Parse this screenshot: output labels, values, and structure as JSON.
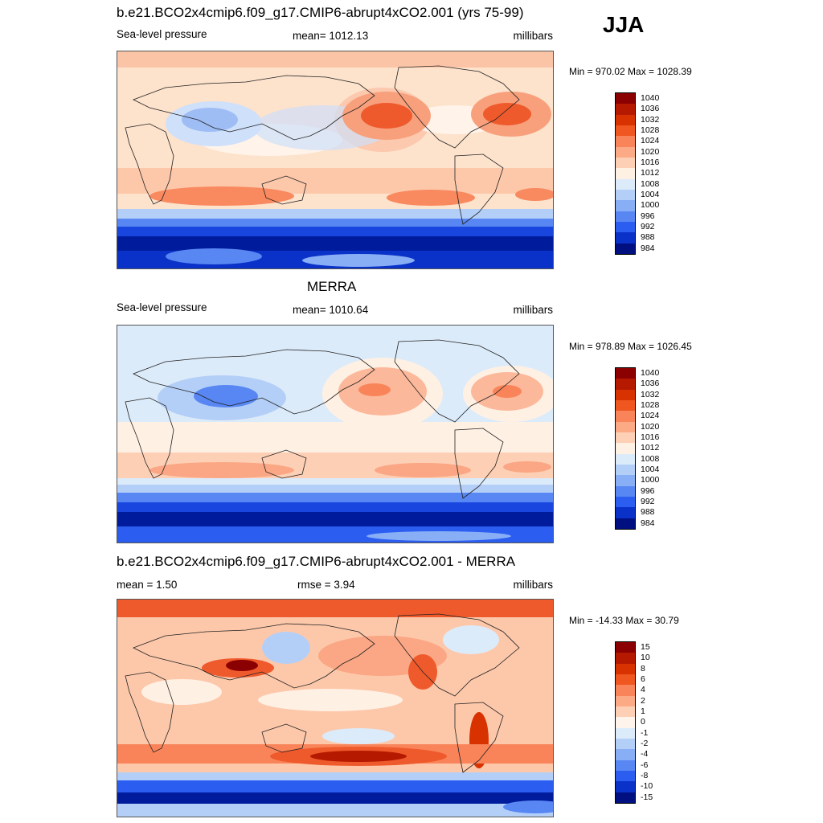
{
  "season": "JJA",
  "panels": [
    {
      "title": "b.e21.BCO2x4cmip6.f09_g17.CMIP6-abrupt4xCO2.001 (yrs 75-99)",
      "left": "Sea-level pressure",
      "center": "mean= 1012.13",
      "right": "millibars",
      "minmax": "Min = 970.02 Max = 1028.39"
    },
    {
      "title": "MERRA",
      "left": "Sea-level pressure",
      "center": "mean= 1010.64",
      "right": "millibars",
      "minmax": "Min = 978.89 Max = 1026.45"
    },
    {
      "title": "b.e21.BCO2x4cmip6.f09_g17.CMIP6-abrupt4xCO2.001 - MERRA",
      "left": "mean =   1.50",
      "center": "rmse =   3.94",
      "right": "millibars",
      "minmax": "Min = -14.33 Max =  30.79"
    }
  ],
  "colorbars": {
    "slp": {
      "labels": [
        "1040",
        "1036",
        "1032",
        "1028",
        "1024",
        "1020",
        "1016",
        "1012",
        "1008",
        "1004",
        "1000",
        "996",
        "992",
        "988",
        "984"
      ],
      "colors": [
        "#8b0000",
        "#b51a00",
        "#d83200",
        "#ef5620",
        "#f9845a",
        "#fcaa86",
        "#fdcfb4",
        "#fff0e4",
        "#dcebfa",
        "#b4cff7",
        "#88aef6",
        "#5887f3",
        "#2a5df0",
        "#0a32c8",
        "#001080"
      ]
    },
    "diff": {
      "labels": [
        "15",
        "10",
        "8",
        "6",
        "4",
        "2",
        "1",
        "0",
        "-1",
        "-2",
        "-4",
        "-6",
        "-8",
        "-10",
        "-15"
      ],
      "colors": [
        "#8b0000",
        "#b51a00",
        "#d83200",
        "#ef5620",
        "#f9845a",
        "#fcaa86",
        "#fdcfb4",
        "#fff4ec",
        "#dcebfa",
        "#b4cff7",
        "#88aef6",
        "#5887f3",
        "#2a5df0",
        "#0a32c8",
        "#001080"
      ]
    }
  }
}
